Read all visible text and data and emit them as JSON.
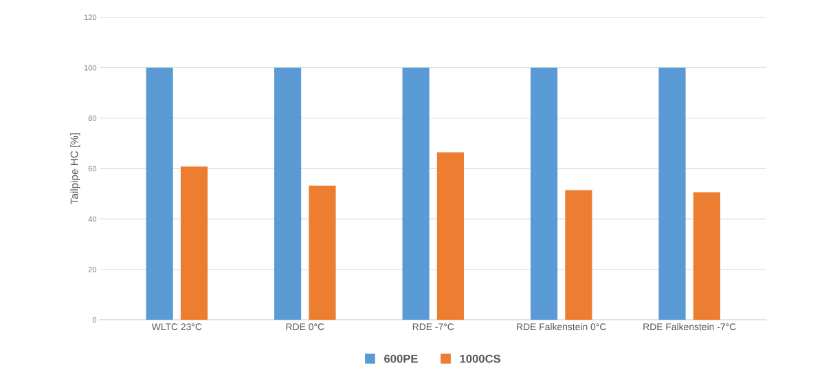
{
  "chart_data": {
    "type": "bar",
    "ylabel": "Tailpipe HC [%]",
    "categories": [
      "WLTC 23°C",
      "RDE 0°C",
      "RDE -7°C",
      "RDE Falkenstein 0°C",
      "RDE Falkenstein -7°C"
    ],
    "series": [
      {
        "name": "600PE",
        "color": "#5b9bd5",
        "values": [
          100,
          100,
          100,
          100,
          100
        ]
      },
      {
        "name": "1000CS",
        "color": "#ed7d31",
        "values": [
          60.8,
          53.2,
          66.4,
          51.4,
          50.6
        ]
      }
    ],
    "ylim": [
      0,
      120
    ],
    "yticks": [
      0,
      20,
      40,
      60,
      80,
      100,
      120
    ],
    "grid": "y",
    "legend": "bottom"
  }
}
